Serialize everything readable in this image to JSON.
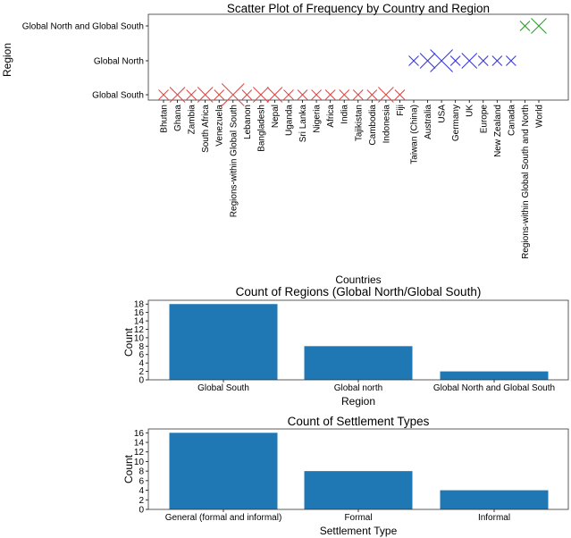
{
  "chart_data": [
    {
      "type": "scatter",
      "title": "Scatter Plot of Frequency by Country and Region",
      "xlabel": "Countries",
      "ylabel": "Region",
      "y_categories": [
        "Global South",
        "Global North",
        "Global North and Global South"
      ],
      "marker": "x",
      "colors": {
        "Global South": "#e04a4a",
        "Global North": "#3a3adf",
        "Global North and Global South": "#2e9a2e"
      },
      "points": [
        {
          "x": "Bhutan",
          "y": "Global South",
          "frequency": 1
        },
        {
          "x": "Ghana",
          "y": "Global South",
          "frequency": 2
        },
        {
          "x": "Zambia",
          "y": "Global South",
          "frequency": 1
        },
        {
          "x": "South Africa",
          "y": "Global South",
          "frequency": 2
        },
        {
          "x": "Venezuela",
          "y": "Global South",
          "frequency": 1
        },
        {
          "x": "Regions-within Global South",
          "y": "Global South",
          "frequency": 3
        },
        {
          "x": "Lebanon",
          "y": "Global South",
          "frequency": 1
        },
        {
          "x": "Bangladesh",
          "y": "Global South",
          "frequency": 2
        },
        {
          "x": "Nepal",
          "y": "Global South",
          "frequency": 2
        },
        {
          "x": "Uganda",
          "y": "Global South",
          "frequency": 1
        },
        {
          "x": "Sri Lanka",
          "y": "Global South",
          "frequency": 1
        },
        {
          "x": "Nigeria",
          "y": "Global South",
          "frequency": 1
        },
        {
          "x": "Africa",
          "y": "Global South",
          "frequency": 1
        },
        {
          "x": "India",
          "y": "Global South",
          "frequency": 1
        },
        {
          "x": "Tajikistan",
          "y": "Global South",
          "frequency": 1
        },
        {
          "x": "Cambodia",
          "y": "Global South",
          "frequency": 1
        },
        {
          "x": "Indonesia",
          "y": "Global South",
          "frequency": 2
        },
        {
          "x": "Fiji",
          "y": "Global South",
          "frequency": 1
        },
        {
          "x": "Taiwan (China)",
          "y": "Global North",
          "frequency": 1
        },
        {
          "x": "Australia",
          "y": "Global North",
          "frequency": 2
        },
        {
          "x": "USA",
          "y": "Global North",
          "frequency": 3
        },
        {
          "x": "Germany",
          "y": "Global North",
          "frequency": 1
        },
        {
          "x": "UK",
          "y": "Global North",
          "frequency": 2
        },
        {
          "x": "Europe",
          "y": "Global North",
          "frequency": 1
        },
        {
          "x": "New Zealand",
          "y": "Global North",
          "frequency": 1
        },
        {
          "x": "Canada",
          "y": "Global North",
          "frequency": 1
        },
        {
          "x": "Regions-within Global South and North",
          "y": "Global North and Global South",
          "frequency": 1
        },
        {
          "x": "World",
          "y": "Global North and Global South",
          "frequency": 2
        }
      ]
    },
    {
      "type": "bar",
      "title": "Count of Regions (Global North/Global South)",
      "xlabel": "Region",
      "ylabel": "Count",
      "categories": [
        "Global South",
        "Global north",
        "Global North and Global South"
      ],
      "values": [
        18,
        8,
        2
      ],
      "ylim": [
        0,
        18.9
      ],
      "yticks": [
        0,
        2,
        4,
        6,
        8,
        10,
        12,
        14,
        16,
        18
      ],
      "color": "#1f77b4"
    },
    {
      "type": "bar",
      "title": "Count of Settlement Types",
      "xlabel": "Settlement Type",
      "ylabel": "Count",
      "categories": [
        "General (formal and informal)",
        "Formal",
        "Informal"
      ],
      "values": [
        16,
        8,
        4
      ],
      "ylim": [
        0,
        16.8
      ],
      "yticks": [
        0,
        2,
        4,
        6,
        8,
        10,
        12,
        14,
        16
      ],
      "color": "#1f77b4"
    }
  ]
}
